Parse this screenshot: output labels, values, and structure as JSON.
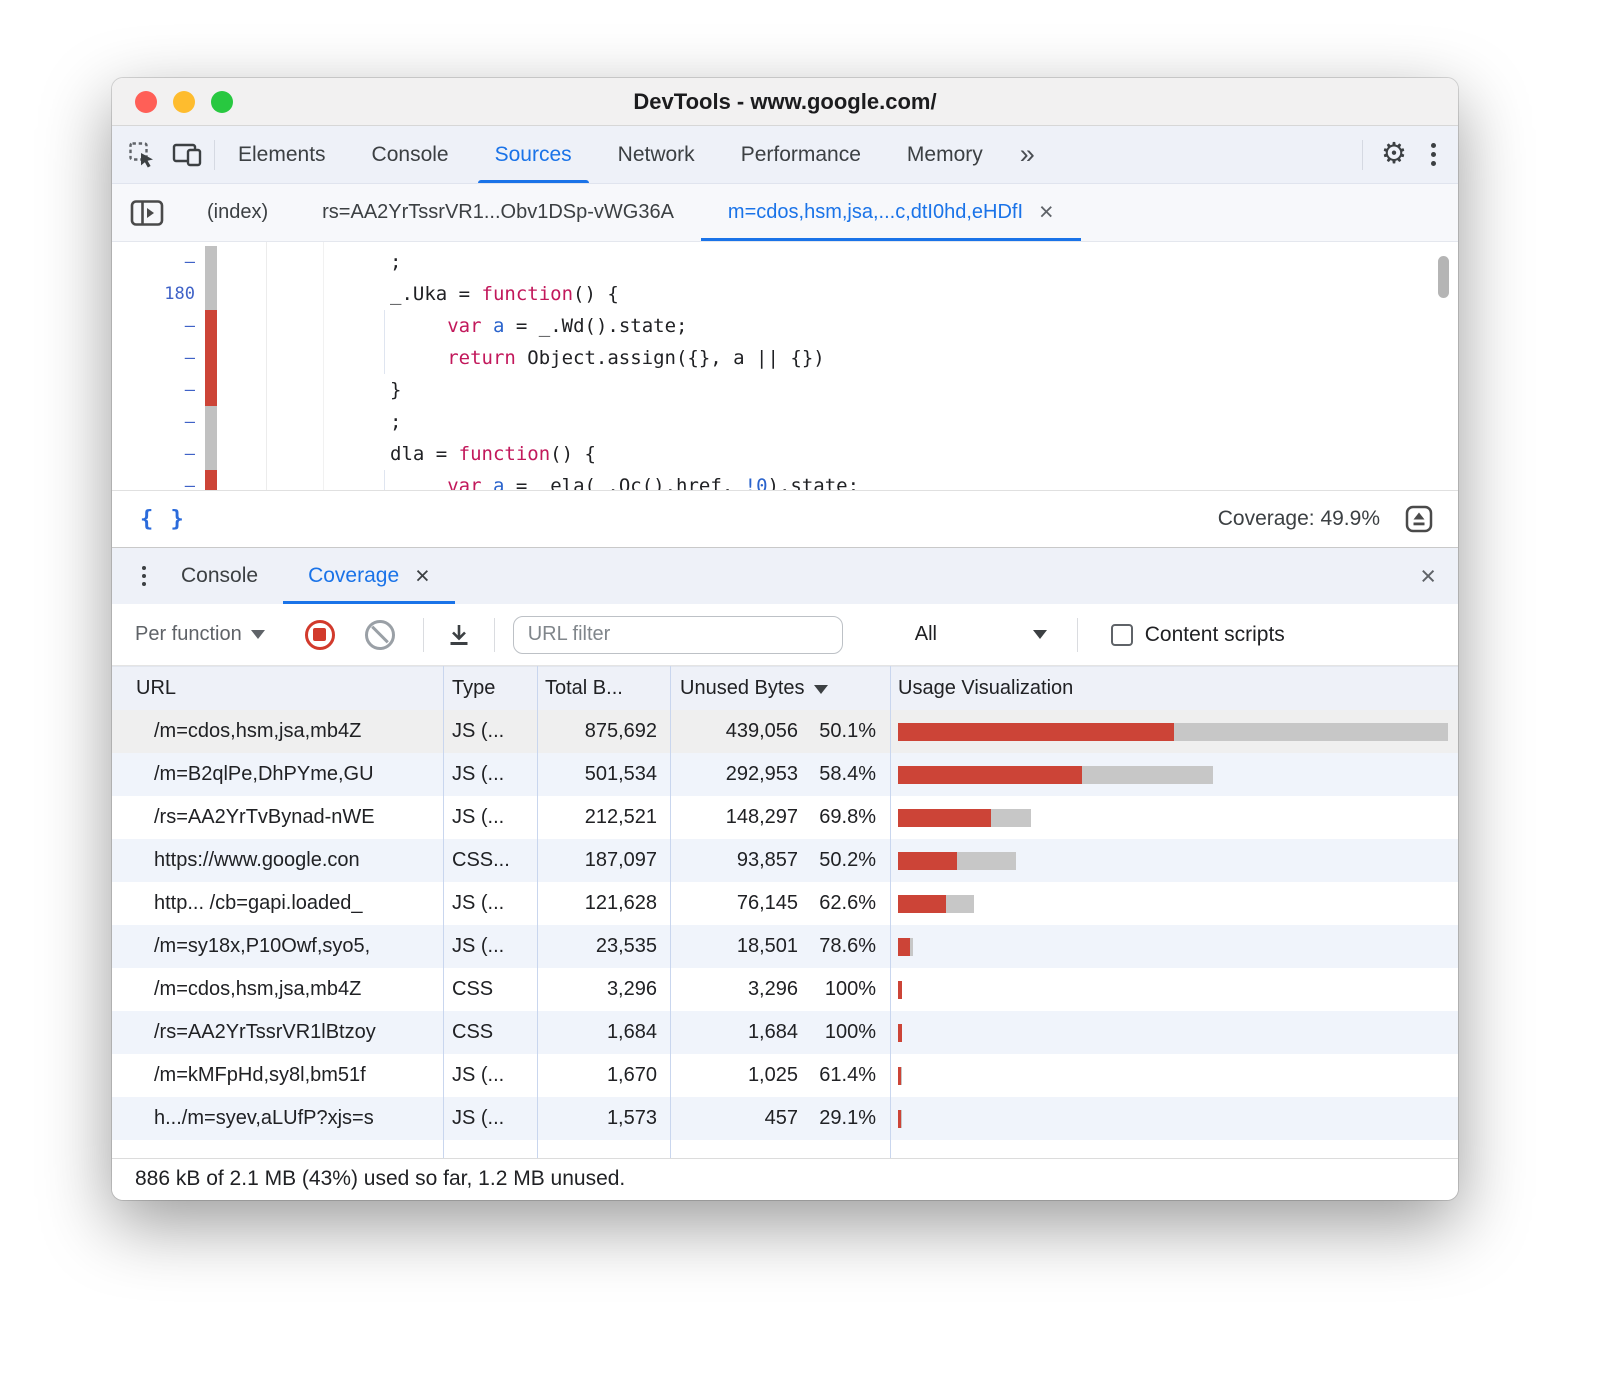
{
  "window": {
    "title": "DevTools - www.google.com/"
  },
  "main_tabs": {
    "items": [
      "Elements",
      "Console",
      "Sources",
      "Network",
      "Performance",
      "Memory"
    ],
    "active": "Sources",
    "more_symbol": "»"
  },
  "file_tabs": {
    "items": [
      "(index)",
      "rs=AA2YrTssrVR1...Obv1DSp-vWG36A",
      "m=cdos,hsm,jsa,...c,dtI0hd,eHDfI"
    ],
    "active": "m=cdos,hsm,jsa,...c,dtI0hd,eHDfI"
  },
  "icons": {
    "close": "×",
    "gear": "⚙",
    "pretty_print": "{ }"
  },
  "editor": {
    "lines": [
      {
        "marker": "–",
        "cov": "gray",
        "segs": [
          [
            "d",
            ";"
          ]
        ]
      },
      {
        "marker": "180",
        "cov": "gray",
        "segs": [
          [
            "d",
            "_.Uka = "
          ],
          [
            "k",
            "function"
          ],
          [
            "d",
            "() {"
          ]
        ]
      },
      {
        "marker": "–",
        "cov": "red",
        "segs": [
          [
            "d",
            "     "
          ],
          [
            "k",
            "var"
          ],
          [
            "d",
            " "
          ],
          [
            "v",
            "a"
          ],
          [
            "d",
            " = _.Wd().state;"
          ]
        ]
      },
      {
        "marker": "–",
        "cov": "red",
        "segs": [
          [
            "d",
            "     "
          ],
          [
            "k",
            "return"
          ],
          [
            "d",
            " Object.assign({}, a || {})"
          ]
        ]
      },
      {
        "marker": "–",
        "cov": "red",
        "segs": [
          [
            "d",
            "}"
          ]
        ]
      },
      {
        "marker": "–",
        "cov": "gray",
        "segs": [
          [
            "d",
            ";"
          ]
        ]
      },
      {
        "marker": "–",
        "cov": "gray",
        "segs": [
          [
            "d",
            "dla = "
          ],
          [
            "k",
            "function"
          ],
          [
            "d",
            "() {"
          ]
        ]
      },
      {
        "marker": "–",
        "cov": "red",
        "segs": [
          [
            "d",
            "     "
          ],
          [
            "k",
            "var"
          ],
          [
            "d",
            " "
          ],
          [
            "v",
            "a"
          ],
          [
            "d",
            " =  ela(_.Oc().href, "
          ],
          [
            "v",
            "!0"
          ],
          [
            "d",
            ").state;"
          ]
        ]
      }
    ]
  },
  "status_bar": {
    "coverage_label": "Coverage: 49.9%"
  },
  "drawer": {
    "tabs": [
      "Console",
      "Coverage"
    ],
    "active": "Coverage"
  },
  "toolbar": {
    "mode": "Per function",
    "url_filter_placeholder": "URL filter",
    "type_filter": "All",
    "content_scripts_label": "Content scripts"
  },
  "table": {
    "headers": {
      "url": "URL",
      "type": "Type",
      "total": "Total B...",
      "unused": "Unused Bytes",
      "usage": "Usage Visualization"
    },
    "max_total_raw": 875692,
    "rows": [
      {
        "url": "/m=cdos,hsm,jsa,mb4Z",
        "type": "JS (...",
        "total": "875,692",
        "unused": "439,056",
        "pct": "50.1%",
        "total_raw": 875692,
        "pct_raw": 50.1,
        "selected": true
      },
      {
        "url": "/m=B2qlPe,DhPYme,GU",
        "type": "JS (...",
        "total": "501,534",
        "unused": "292,953",
        "pct": "58.4%",
        "total_raw": 501534,
        "pct_raw": 58.4
      },
      {
        "url": "/rs=AA2YrTvBynad-nWE",
        "type": "JS (...",
        "total": "212,521",
        "unused": "148,297",
        "pct": "69.8%",
        "total_raw": 212521,
        "pct_raw": 69.8
      },
      {
        "url": "https://www.google.con",
        "type": "CSS...",
        "total": "187,097",
        "unused": "93,857",
        "pct": "50.2%",
        "total_raw": 187097,
        "pct_raw": 50.2
      },
      {
        "url": "http...  /cb=gapi.loaded_",
        "type": "JS (...",
        "total": "121,628",
        "unused": "76,145",
        "pct": "62.6%",
        "total_raw": 121628,
        "pct_raw": 62.6
      },
      {
        "url": "/m=sy18x,P10Owf,syo5,",
        "type": "JS (...",
        "total": "23,535",
        "unused": "18,501",
        "pct": "78.6%",
        "total_raw": 23535,
        "pct_raw": 78.6
      },
      {
        "url": "/m=cdos,hsm,jsa,mb4Z",
        "type": "CSS",
        "total": "3,296",
        "unused": "3,296",
        "pct": "100%",
        "total_raw": 3296,
        "pct_raw": 100
      },
      {
        "url": "/rs=AA2YrTssrVR1lBtzoy",
        "type": "CSS",
        "total": "1,684",
        "unused": "1,684",
        "pct": "100%",
        "total_raw": 1684,
        "pct_raw": 100
      },
      {
        "url": "/m=kMFpHd,sy8l,bm51f",
        "type": "JS (...",
        "total": "1,670",
        "unused": "1,025",
        "pct": "61.4%",
        "total_raw": 1670,
        "pct_raw": 61.4
      },
      {
        "url": "h.../m=syev,aLUfP?xjs=s",
        "type": "JS (...",
        "total": "1,573",
        "unused": "457",
        "pct": "29.1%",
        "total_raw": 1573,
        "pct_raw": 29.1
      }
    ]
  },
  "footer": {
    "summary": "886 kB of 2.1 MB (43%) used so far, 1.2 MB unused."
  },
  "colors": {
    "accent": "#1a73e8",
    "bar_red": "#cc4437",
    "bar_gray": "#c7c7c7",
    "keyword": "#c2185b"
  }
}
